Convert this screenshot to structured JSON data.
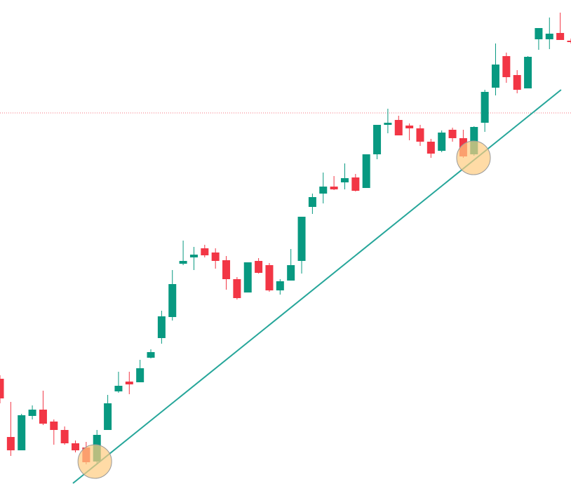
{
  "chart_data": {
    "type": "candlestick",
    "categories": [
      null,
      null,
      null,
      null,
      null,
      null,
      null,
      null,
      null,
      null,
      null,
      null,
      null,
      null,
      null,
      null,
      null,
      null,
      null,
      null,
      null,
      null,
      null,
      null,
      null,
      null,
      null,
      null,
      null,
      null,
      null,
      null,
      null,
      null,
      null,
      null,
      null,
      null,
      null,
      null,
      null,
      null,
      null,
      null,
      null,
      null,
      null,
      null,
      null,
      null,
      null,
      null,
      null,
      null
    ],
    "open": [
      170,
      87,
      68,
      117,
      126,
      109,
      97,
      78,
      72,
      52,
      97,
      152,
      166,
      165,
      200,
      228,
      258,
      334,
      343,
      356,
      350,
      339,
      312,
      293,
      338,
      332,
      296,
      310,
      338,
      415,
      434,
      444,
      450,
      457,
      442,
      490,
      532,
      539,
      531,
      527,
      508,
      495,
      525,
      513,
      490,
      535,
      585,
      630,
      603,
      584,
      654,
      654,
      663,
      652
    ],
    "high": [
      175,
      137,
      120,
      132,
      153,
      112,
      102,
      82,
      80,
      97,
      147,
      180,
      180,
      197,
      212,
      267,
      325,
      367,
      358,
      361,
      356,
      345,
      315,
      336,
      342,
      335,
      312,
      355,
      401,
      434,
      464,
      459,
      477,
      462,
      490,
      532,
      555,
      545,
      534,
      532,
      512,
      524,
      528,
      525,
      530,
      582,
      648,
      635,
      610,
      630,
      670,
      685,
      692,
      655
    ],
    "low": [
      135,
      60,
      68,
      112,
      104,
      76,
      76,
      65,
      48,
      48,
      97,
      150,
      148,
      165,
      199,
      220,
      253,
      332,
      325,
      343,
      327,
      297,
      283,
      293,
      320,
      294,
      290,
      310,
      320,
      405,
      420,
      439,
      440,
      437,
      442,
      483,
      520,
      517,
      510,
      502,
      485,
      493,
      508,
      485,
      488,
      522,
      574,
      592,
      577,
      584,
      639,
      640,
      653,
      648
    ],
    "close": [
      142,
      68,
      118,
      126,
      106,
      97,
      78,
      68,
      51,
      90,
      135,
      160,
      162,
      185,
      208,
      259,
      305,
      338,
      347,
      346,
      338,
      312,
      285,
      336,
      321,
      296,
      309,
      332,
      401,
      429,
      444,
      440,
      456,
      438,
      490,
      532,
      535,
      517,
      527,
      508,
      491,
      521,
      513,
      487,
      529,
      579,
      618,
      600,
      582,
      629,
      670,
      662,
      653,
      650
    ],
    "up_color": "#089981",
    "down_color": "#f23645",
    "ylim": [
      0,
      710
    ],
    "trendline": {
      "x": [
        6.77,
        52.08
      ],
      "y": [
        21,
        582
      ],
      "color": "#26a69a"
    },
    "price_line": {
      "value": 549,
      "color": "#f23645"
    },
    "highlights": {
      "index": [
        8.8,
        43.95
      ],
      "value": [
        52,
        485
      ],
      "color": "#ffcc80"
    }
  }
}
